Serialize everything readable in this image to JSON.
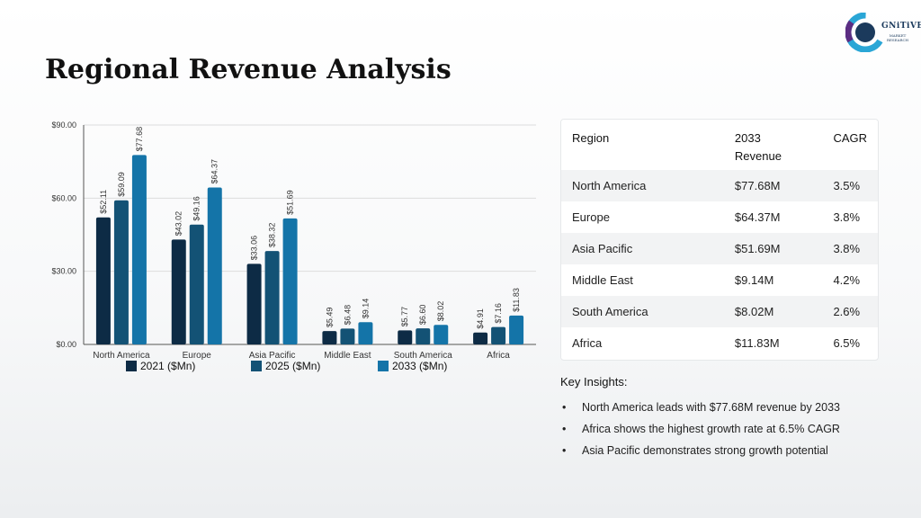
{
  "page": {
    "title": "Regional Revenue Analysis"
  },
  "logo": {
    "text": "GNiTiVE",
    "subtext_line1": "MARKET",
    "subtext_line2": "RESEARCH",
    "colors": [
      "#2aa6d6",
      "#1b3a5c",
      "#5b2d82"
    ]
  },
  "colors": {
    "series_2021": "#0d2b45",
    "series_2025": "#135275",
    "series_2033": "#1474a8",
    "grid": "#dddddd",
    "axis": "#555555"
  },
  "chart_data": {
    "type": "bar",
    "categories": [
      "North America",
      "Europe",
      "Asia Pacific",
      "Middle East",
      "South America",
      "Africa"
    ],
    "series": [
      {
        "name": "2021 ($Mn)",
        "values": [
          52.11,
          43.02,
          33.06,
          5.49,
          5.77,
          4.91
        ]
      },
      {
        "name": "2025 ($Mn)",
        "values": [
          59.09,
          49.16,
          38.32,
          6.48,
          6.6,
          7.16
        ]
      },
      {
        "name": "2033 ($Mn)",
        "values": [
          77.68,
          64.37,
          51.69,
          9.14,
          8.02,
          11.83
        ]
      }
    ],
    "data_labels": [
      [
        "$52.11",
        "$43.02",
        "$33.06",
        "$5.49",
        "$5.77",
        "$4.91"
      ],
      [
        "$59.09",
        "$49.16",
        "$38.32",
        "$6.48",
        "$6.60",
        "$7.16"
      ],
      [
        "$77.68",
        "$64.37",
        "$51.69",
        "$9.14",
        "$8.02",
        "$11.83"
      ]
    ],
    "y_ticks": [
      0,
      30,
      60,
      90
    ],
    "y_tick_labels": [
      "$0.00",
      "$30.00",
      "$60.00",
      "$90.00"
    ],
    "ylim": [
      0,
      90
    ],
    "grid": true,
    "legend_position": "bottom"
  },
  "table": {
    "headers": [
      "Region",
      "2033\nRevenue",
      "CAGR"
    ],
    "rows": [
      [
        "North America",
        "$77.68M",
        "3.5%"
      ],
      [
        "Europe",
        "$64.37M",
        "3.8%"
      ],
      [
        "Asia Pacific",
        "$51.69M",
        "3.8%"
      ],
      [
        "Middle East",
        "$9.14M",
        "4.2%"
      ],
      [
        "South America",
        "$8.02M",
        "2.6%"
      ],
      [
        "Africa",
        "$11.83M",
        "6.5%"
      ]
    ]
  },
  "insights": {
    "title": "Key Insights:",
    "bullet": "•",
    "items": [
      "North America leads with $77.68M revenue by 2033",
      "Africa shows the highest growth rate at 6.5% CAGR",
      "Asia Pacific demonstrates strong growth potential"
    ]
  }
}
